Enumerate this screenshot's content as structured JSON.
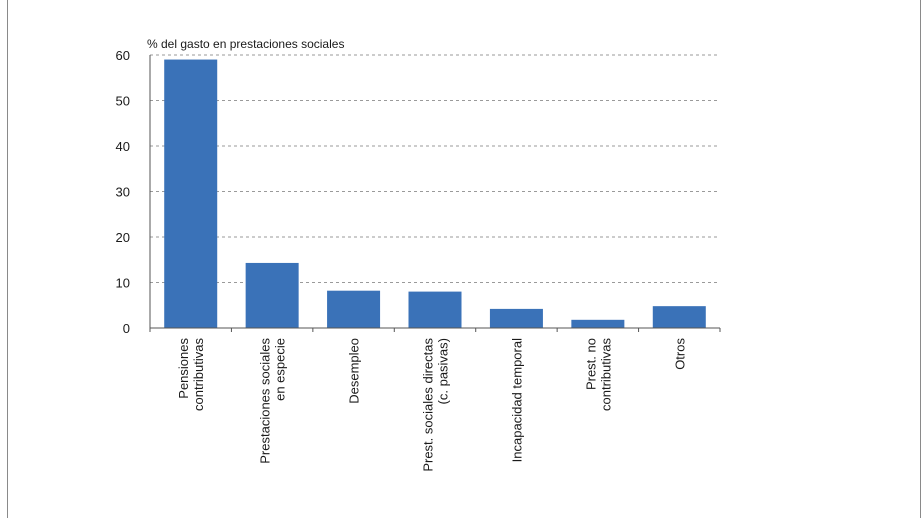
{
  "chart_data": {
    "type": "bar",
    "title": "",
    "ylabel": "% del gasto en prestaciones sociales",
    "xlabel": "",
    "ylim": [
      0,
      60
    ],
    "yticks": [
      0,
      10,
      20,
      30,
      40,
      50,
      60
    ],
    "grid": true,
    "categories": [
      [
        "Pensiones",
        "contributivas"
      ],
      [
        "Prestaciones sociales",
        "en especie"
      ],
      [
        "Desempleo"
      ],
      [
        "Prest. sociales directas",
        "(c. pasivas)"
      ],
      [
        "Incapacidad temporal"
      ],
      [
        "Prest. no",
        "contributivas"
      ],
      [
        "Otros"
      ]
    ],
    "values": [
      59,
      14.3,
      8.2,
      8,
      4.2,
      1.8,
      4.8
    ],
    "colors": {
      "bar": "#3a72b8",
      "grid": "#9a9a9a",
      "axis": "#555555"
    }
  }
}
